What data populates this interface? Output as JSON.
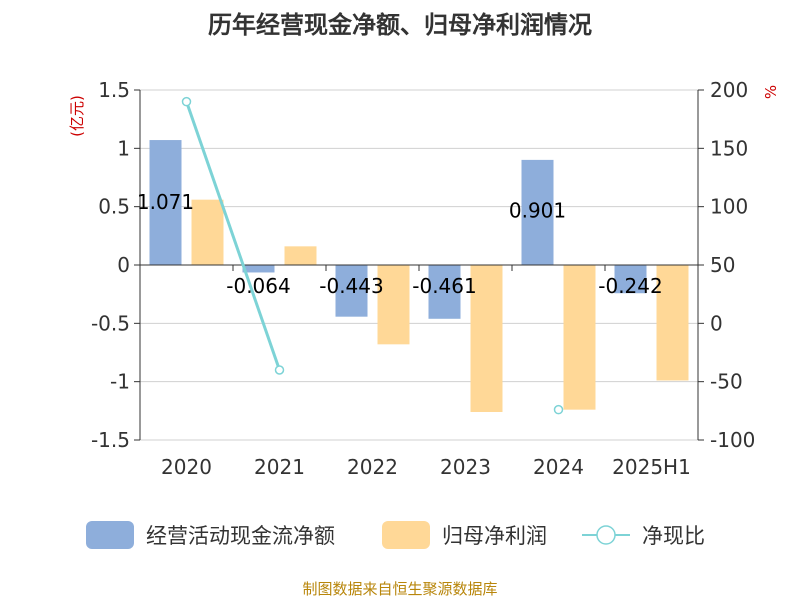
{
  "chart_data": {
    "type": "bar",
    "title": "历年经营现金净额、归母净利润情况",
    "left_unit": "(亿元)",
    "right_unit": "%",
    "categories": [
      "2020",
      "2021",
      "2022",
      "2023",
      "2024",
      "2025H1"
    ],
    "left_axis": {
      "ylim": [
        -1.5,
        1.5
      ],
      "ticks": [
        "1.5",
        "1",
        "0.5",
        "0",
        "-0.5",
        "-1",
        "-1.5"
      ]
    },
    "right_axis": {
      "ylim": [
        -100,
        200
      ],
      "ticks": [
        "200",
        "150",
        "100",
        "50",
        "0",
        "-50",
        "-100"
      ]
    },
    "grid": true,
    "legend_position": "bottom",
    "series": [
      {
        "name": "经营活动现金流净额",
        "kind": "bar",
        "axis": "left",
        "color": "#8eaedb",
        "values": [
          1.071,
          -0.064,
          -0.443,
          -0.461,
          0.901,
          -0.242
        ],
        "labels": [
          "1.071",
          "-0.064",
          "-0.443",
          "-0.461",
          "0.901",
          "-0.242"
        ]
      },
      {
        "name": "归母净利润",
        "kind": "bar",
        "axis": "left",
        "color": "#ffd897",
        "values": [
          0.56,
          0.16,
          -0.68,
          -1.26,
          -1.24,
          -0.99
        ]
      },
      {
        "name": "净现比",
        "kind": "line",
        "axis": "right",
        "color": "#7dd3d6",
        "values": [
          190,
          -40,
          null,
          null,
          -74,
          null
        ]
      }
    ],
    "source": "制图数据来自恒生聚源数据库"
  }
}
